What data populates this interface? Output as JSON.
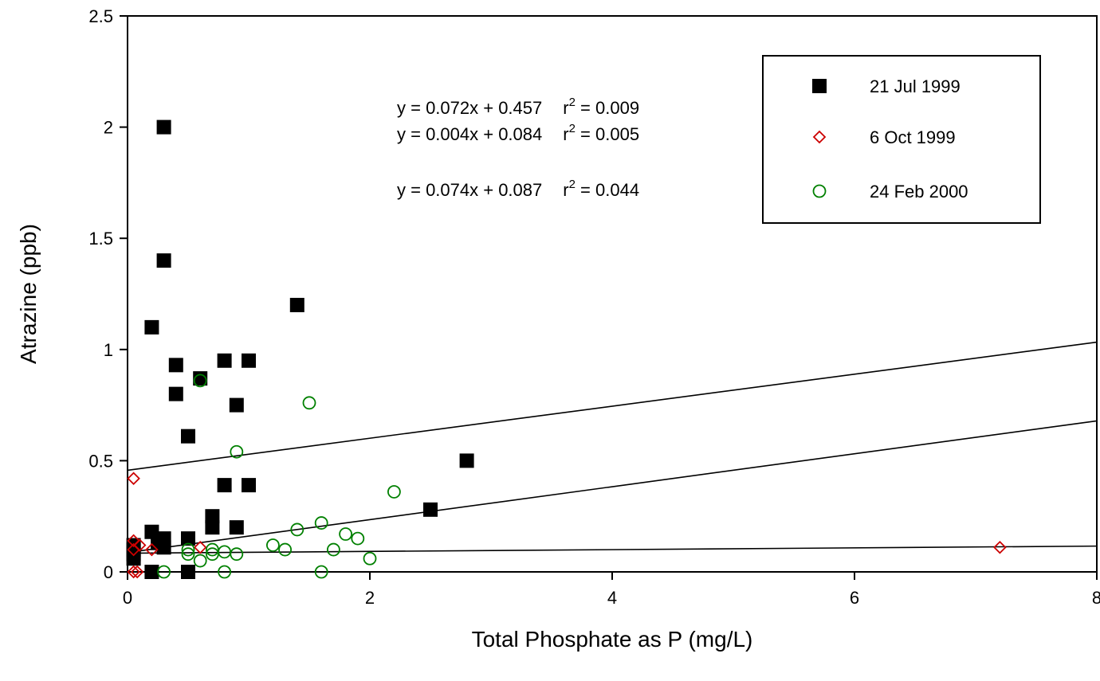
{
  "chart_data": {
    "type": "scatter",
    "title": "",
    "xlabel": "Total Phosphate as P (mg/L)",
    "ylabel": "Atrazine (ppb)",
    "xlim": [
      0,
      8
    ],
    "ylim": [
      0,
      2.5
    ],
    "xticks": [
      "0",
      "2",
      "4",
      "6",
      "8"
    ],
    "yticks": [
      "0",
      "0.5",
      "1",
      "1.5",
      "2",
      "2.5"
    ],
    "grid": false,
    "legend_position": "top-right",
    "series": [
      {
        "name": "21 Jul 1999",
        "marker": "filled-square",
        "color": "#000000",
        "points": [
          [
            0.3,
            2.0
          ],
          [
            0.3,
            1.4
          ],
          [
            1.4,
            1.2
          ],
          [
            0.2,
            1.1
          ],
          [
            0.8,
            0.95
          ],
          [
            1.0,
            0.95
          ],
          [
            0.4,
            0.93
          ],
          [
            0.6,
            0.87
          ],
          [
            0.4,
            0.8
          ],
          [
            0.9,
            0.75
          ],
          [
            0.5,
            0.61
          ],
          [
            2.8,
            0.5
          ],
          [
            0.8,
            0.39
          ],
          [
            1.0,
            0.39
          ],
          [
            2.5,
            0.28
          ],
          [
            0.7,
            0.25
          ],
          [
            0.7,
            0.2
          ],
          [
            0.9,
            0.2
          ],
          [
            0.2,
            0.18
          ],
          [
            0.3,
            0.15
          ],
          [
            0.5,
            0.15
          ],
          [
            0.25,
            0.13
          ],
          [
            0.3,
            0.11
          ],
          [
            0.05,
            0.12
          ],
          [
            0.05,
            0.1
          ],
          [
            0.05,
            0.08
          ],
          [
            0.05,
            0.06
          ],
          [
            0.2,
            0.0
          ],
          [
            0.5,
            0.0
          ]
        ]
      },
      {
        "name": "6 Oct 1999",
        "marker": "open-diamond",
        "color": "#cc0000",
        "points": [
          [
            0.05,
            0.42
          ],
          [
            0.05,
            0.14
          ],
          [
            0.05,
            0.1
          ],
          [
            0.1,
            0.12
          ],
          [
            0.2,
            0.1
          ],
          [
            0.6,
            0.11
          ],
          [
            7.2,
            0.11
          ],
          [
            0.05,
            0.0
          ],
          [
            0.08,
            0.0
          ]
        ]
      },
      {
        "name": "24 Feb 2000",
        "marker": "open-circle",
        "color": "#008000",
        "points": [
          [
            0.6,
            0.86
          ],
          [
            1.5,
            0.76
          ],
          [
            0.9,
            0.54
          ],
          [
            2.2,
            0.36
          ],
          [
            1.6,
            0.22
          ],
          [
            1.4,
            0.19
          ],
          [
            1.8,
            0.17
          ],
          [
            1.9,
            0.15
          ],
          [
            1.2,
            0.12
          ],
          [
            0.5,
            0.1
          ],
          [
            0.7,
            0.1
          ],
          [
            1.3,
            0.1
          ],
          [
            1.7,
            0.1
          ],
          [
            0.8,
            0.09
          ],
          [
            0.5,
            0.08
          ],
          [
            0.7,
            0.08
          ],
          [
            0.9,
            0.08
          ],
          [
            2.0,
            0.06
          ],
          [
            0.6,
            0.05
          ],
          [
            0.3,
            0.0
          ],
          [
            0.8,
            0.0
          ],
          [
            1.6,
            0.0
          ]
        ]
      }
    ],
    "fit_lines": [
      {
        "slope": 0.072,
        "intercept": 0.457
      },
      {
        "slope": 0.004,
        "intercept": 0.084
      },
      {
        "slope": 0.074,
        "intercept": 0.087
      }
    ],
    "annotations": [
      {
        "eq": "y = 0.072x + 0.457",
        "r2_prefix": "r",
        "r2_sup": "2",
        "r2_value": " = 0.009"
      },
      {
        "eq": "y = 0.004x + 0.084",
        "r2_prefix": "r",
        "r2_sup": "2",
        "r2_value": " = 0.005"
      },
      {
        "eq": "y = 0.074x + 0.087",
        "r2_prefix": "r",
        "r2_sup": "2",
        "r2_value": " = 0.044"
      }
    ]
  }
}
